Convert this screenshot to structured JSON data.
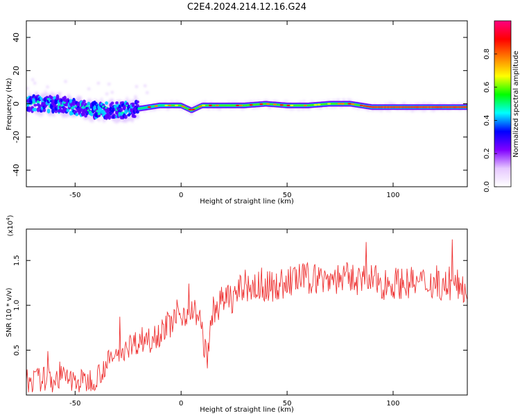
{
  "page_title": "C2E4.2024.214.12.16.G24",
  "chart_data": [
    {
      "type": "heatmap",
      "title": "C2E4.2024.214.12.16.G24",
      "xlabel": "Height of straight line (km)",
      "ylabel": "Frequency (Hz)",
      "xlim": [
        -73,
        135
      ],
      "ylim": [
        -50,
        50
      ],
      "x_ticks": [
        -50,
        0,
        50,
        100
      ],
      "y_ticks": [
        -40,
        -20,
        0,
        20,
        40
      ],
      "colorbar": {
        "label": "Normalized spectral amplitude",
        "range": [
          0,
          1
        ],
        "ticks": [
          0.0,
          0.2,
          0.4,
          0.6,
          0.8
        ],
        "colormap": [
          "#ffffff",
          "#e6c8ff",
          "#8000ff",
          "#0000ff",
          "#00ffff",
          "#00ff00",
          "#ffff00",
          "#ff8000",
          "#ff0000",
          "#ff0080"
        ]
      },
      "ridge": {
        "x": [
          -73,
          -60,
          -50,
          -40,
          -30,
          -20,
          -15,
          -10,
          0,
          5,
          10,
          20,
          30,
          40,
          50,
          60,
          70,
          80,
          90,
          100,
          110,
          120,
          135
        ],
        "frequency": [
          0,
          0,
          -2,
          -4,
          -4,
          -3,
          -2,
          -1,
          -1,
          -4,
          -1,
          -1,
          -1,
          0,
          -1,
          -1,
          0,
          0,
          -2,
          -2,
          -2,
          -2,
          -2
        ]
      },
      "grid": false
    },
    {
      "type": "line",
      "xlabel": "Height of straight line (km)",
      "ylabel": "SNR (10 * v/v)",
      "multiplier_label": "(x10",
      "multiplier_exp": "4",
      "multiplier_close": ")",
      "xlim": [
        -73,
        135
      ],
      "ylim": [
        0.0,
        1.85
      ],
      "x_ticks": [
        -50,
        0,
        50,
        100
      ],
      "y_ticks": [
        0.5,
        1.0,
        1.5
      ],
      "series": [
        {
          "color": "#ee3333",
          "x": [
            -73,
            -65,
            -55,
            -50,
            -45,
            -40,
            -35,
            -30,
            -25,
            -20,
            -15,
            -10,
            -5,
            0,
            5,
            8,
            10,
            12,
            13,
            15,
            20,
            25,
            30,
            35,
            40,
            45,
            50,
            55,
            60,
            65,
            70,
            75,
            80,
            85,
            90,
            95,
            100,
            105,
            110,
            115,
            120,
            125,
            130,
            135
          ],
          "y": [
            0.15,
            0.18,
            0.2,
            0.15,
            0.15,
            0.2,
            0.35,
            0.45,
            0.55,
            0.6,
            0.65,
            0.7,
            0.8,
            0.9,
            0.95,
            0.9,
            0.7,
            0.4,
            0.5,
            0.95,
            1.05,
            1.1,
            1.2,
            1.2,
            1.2,
            1.22,
            1.25,
            1.3,
            1.3,
            1.3,
            1.3,
            1.3,
            1.3,
            1.28,
            1.28,
            1.25,
            1.25,
            1.25,
            1.25,
            1.25,
            1.25,
            1.22,
            1.22,
            1.2
          ]
        }
      ],
      "grid": false
    }
  ]
}
